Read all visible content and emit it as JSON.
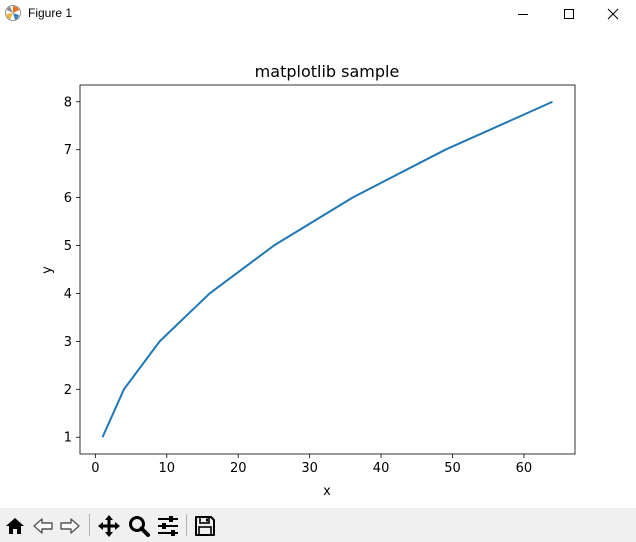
{
  "window": {
    "title": "Figure 1"
  },
  "toolbar": {
    "buttons": [
      {
        "icon": "home-icon"
      },
      {
        "icon": "back-arrow-icon"
      },
      {
        "icon": "forward-arrow-icon"
      },
      {
        "icon": "pan-move-icon"
      },
      {
        "icon": "zoom-magnifier-icon"
      },
      {
        "icon": "configure-subplots-icon"
      },
      {
        "icon": "save-floppy-icon"
      }
    ]
  },
  "chart_data": {
    "type": "line",
    "title": "matplotlib sample",
    "xlabel": "x",
    "ylabel": "y",
    "x": [
      1,
      4,
      9,
      16,
      25,
      36,
      49,
      64
    ],
    "series": [
      {
        "values": [
          1,
          2,
          3,
          4,
          5,
          6,
          7,
          8
        ],
        "color": "#1f77b4"
      }
    ],
    "xlim": [
      -2.15,
      67.15
    ],
    "ylim": [
      0.65,
      8.35
    ],
    "xticks": [
      0,
      10,
      20,
      30,
      40,
      50,
      60
    ],
    "yticks": [
      1,
      2,
      3,
      4,
      5,
      6,
      7,
      8
    ],
    "grid": false
  }
}
